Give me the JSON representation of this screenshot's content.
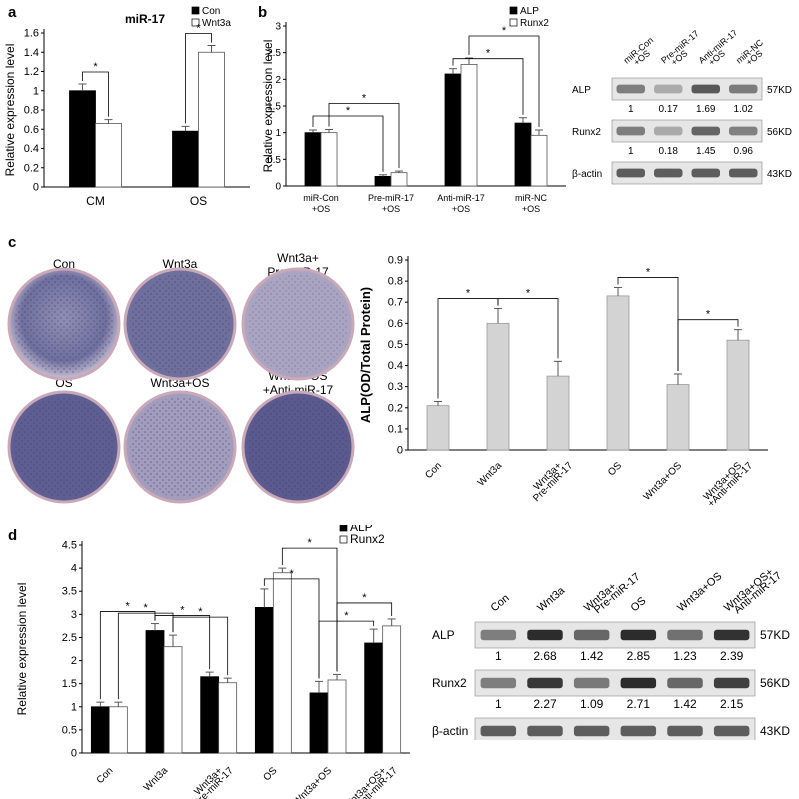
{
  "panels": {
    "a": {
      "letter": "a"
    },
    "b": {
      "letter": "b"
    },
    "c": {
      "letter": "c",
      "plate_labels": [
        "Con",
        "Wnt3a",
        "Wnt3a+",
        "Pre-miR-17",
        "OS",
        "Wnt3a+OS",
        "Wnt3a+OS",
        "+Anti-miR-17"
      ]
    },
    "d": {
      "letter": "d"
    }
  },
  "blot_b": {
    "lanes": [
      [
        "miR-Con",
        "+OS"
      ],
      [
        "Pre-miR-17",
        "+OS"
      ],
      [
        "Anti-miR-17",
        "+OS"
      ],
      [
        "miR-NC",
        "+OS"
      ]
    ],
    "rows": [
      {
        "label": "ALP",
        "size": "57KD",
        "values": [
          "1",
          "0.17",
          "1.69",
          "1.02"
        ]
      },
      {
        "label": "Runx2",
        "size": "56KD",
        "values": [
          "1",
          "0.18",
          "1.45",
          "0.96"
        ]
      },
      {
        "label": "β-actin",
        "size": "43KD",
        "values": []
      }
    ]
  },
  "blot_d": {
    "lanes": [
      [
        "Con"
      ],
      [
        "Wnt3a"
      ],
      [
        "Wnt3a+",
        "Pre-miR-17"
      ],
      [
        "OS"
      ],
      [
        "Wnt3a+OS"
      ],
      [
        "Wnt3a+OS+",
        "Anti-miR-17"
      ]
    ],
    "rows": [
      {
        "label": "ALP",
        "size": "57KD",
        "values": [
          "1",
          "2.68",
          "1.42",
          "2.85",
          "1.23",
          "2.39"
        ]
      },
      {
        "label": "Runx2",
        "size": "56KD",
        "values": [
          "1",
          "2.27",
          "1.09",
          "2.71",
          "1.42",
          "2.15"
        ]
      },
      {
        "label": "β-actin",
        "size": "43KD",
        "values": []
      }
    ]
  },
  "chart_data": [
    {
      "id": "a",
      "type": "bar",
      "title": "miR-17",
      "ylabel": "Relative expression level",
      "ylim": [
        0,
        1.6
      ],
      "yticks": [
        "0",
        "0.2",
        "0.4",
        "0.6",
        "0.8",
        "1",
        "1.2",
        "1.4",
        "1.6"
      ],
      "categories": [
        "CM",
        "OS"
      ],
      "series": [
        {
          "name": "Con",
          "color": "#000000",
          "values": [
            1.0,
            0.58
          ],
          "errors": [
            0.07,
            0.05
          ]
        },
        {
          "name": "Wnt3a",
          "color": "#ffffff",
          "values": [
            0.66,
            1.4
          ],
          "errors": [
            0.04,
            0.07
          ]
        }
      ],
      "legend": "top-right",
      "significance": [
        "*",
        "*"
      ]
    },
    {
      "id": "b",
      "type": "bar",
      "ylabel": "Relative expression level",
      "ylim": [
        0,
        3
      ],
      "yticks": [
        "0",
        "0.5",
        "1",
        "1.5",
        "2",
        "2.5",
        "3"
      ],
      "categories": [
        [
          "miR-Con",
          "+OS"
        ],
        [
          "Pre-miR-17",
          "+OS"
        ],
        [
          "Anti-miR-17",
          "+OS"
        ],
        [
          "miR-NC",
          "+OS"
        ]
      ],
      "series": [
        {
          "name": "ALP",
          "color": "#000000",
          "values": [
            1.0,
            0.18,
            2.1,
            1.18
          ],
          "errors": [
            0.05,
            0.03,
            0.1,
            0.1
          ]
        },
        {
          "name": "Runx2",
          "color": "#ffffff",
          "values": [
            1.0,
            0.25,
            2.28,
            0.95
          ],
          "errors": [
            0.06,
            0.03,
            0.12,
            0.1
          ]
        }
      ],
      "legend": "top-right",
      "significance": [
        "*",
        "*",
        "*",
        "*"
      ]
    },
    {
      "id": "c",
      "type": "bar",
      "ylabel": "ALP(OD/Total Protein)",
      "ylim": [
        0,
        0.9
      ],
      "yticks": [
        "0",
        "0.1",
        "0.2",
        "0.3",
        "0.4",
        "0.5",
        "0.6",
        "0.7",
        "0.8",
        "0.9"
      ],
      "categories": [
        [
          "Con"
        ],
        [
          "Wnt3a"
        ],
        [
          "Wnt3a+",
          "Pre-miR-17"
        ],
        [
          "OS"
        ],
        [
          "Wnt3a+OS"
        ],
        [
          "Wnt3a+OS",
          "+Anti-miR-17"
        ]
      ],
      "series": [
        {
          "color": "#d3d3d3",
          "values": [
            0.21,
            0.6,
            0.35,
            0.73,
            0.31,
            0.52
          ],
          "errors": [
            0.02,
            0.07,
            0.07,
            0.04,
            0.05,
            0.05
          ]
        }
      ],
      "significance": [
        "*",
        "*",
        "*",
        "*"
      ]
    },
    {
      "id": "d",
      "type": "bar",
      "ylabel": "Relative expression level",
      "ylim": [
        0,
        4.5
      ],
      "yticks": [
        "0",
        "0.5",
        "1",
        "1.5",
        "2",
        "2.5",
        "3",
        "3.5",
        "4",
        "4.5"
      ],
      "categories": [
        [
          "Con"
        ],
        [
          "Wnt3a"
        ],
        [
          "Wnt3a+",
          "Pre-miR-17"
        ],
        [
          "OS"
        ],
        [
          "Wnt3a+OS"
        ],
        [
          "Wnt3a+OS+",
          "Anti-miR-17"
        ]
      ],
      "series": [
        {
          "name": "ALP",
          "color": "#000000",
          "values": [
            1.0,
            2.65,
            1.65,
            3.15,
            1.3,
            2.38
          ],
          "errors": [
            0.1,
            0.15,
            0.1,
            0.4,
            0.25,
            0.3
          ]
        },
        {
          "name": "Runx2",
          "color": "#ffffff",
          "values": [
            1.0,
            2.3,
            1.52,
            3.9,
            1.58,
            2.75
          ],
          "errors": [
            0.1,
            0.25,
            0.1,
            0.1,
            0.12,
            0.15
          ]
        }
      ],
      "legend": "top-right",
      "significance": [
        "*",
        "*",
        "*",
        "*",
        "*",
        "*",
        "*",
        "*"
      ]
    }
  ]
}
